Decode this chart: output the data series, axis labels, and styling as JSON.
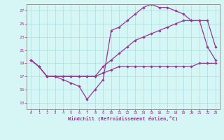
{
  "xlabel": "Windchill (Refroidissement éolien,°C)",
  "bg_color": "#d6f5f5",
  "grid_color": "#aadddd",
  "line_color": "#993399",
  "spine_color": "#888888",
  "xlim": [
    -0.5,
    23.5
  ],
  "ylim": [
    12,
    28
  ],
  "xticks": [
    0,
    1,
    2,
    3,
    4,
    5,
    6,
    7,
    8,
    9,
    10,
    11,
    12,
    13,
    14,
    15,
    16,
    17,
    18,
    19,
    20,
    21,
    22,
    23
  ],
  "yticks": [
    13,
    15,
    17,
    19,
    21,
    23,
    25,
    27
  ],
  "line1_x": [
    0,
    1,
    2,
    3,
    4,
    5,
    6,
    7,
    8,
    9,
    10,
    11,
    12,
    13,
    14,
    15,
    16,
    17,
    18,
    19,
    20,
    21,
    22,
    23
  ],
  "line1_y": [
    19.5,
    18.5,
    17.0,
    17.0,
    17.0,
    17.0,
    17.0,
    17.0,
    17.0,
    17.5,
    18.0,
    18.5,
    18.5,
    18.5,
    18.5,
    18.5,
    18.5,
    18.5,
    18.5,
    18.5,
    18.5,
    19.0,
    19.0,
    19.0
  ],
  "line2_x": [
    0,
    1,
    2,
    3,
    4,
    5,
    6,
    7,
    8,
    9,
    10,
    11,
    12,
    13,
    14,
    15,
    16,
    17,
    18,
    19,
    20,
    21,
    22,
    23
  ],
  "line2_y": [
    19.5,
    18.5,
    17.0,
    17.0,
    17.0,
    17.0,
    17.0,
    17.0,
    17.0,
    18.5,
    19.5,
    20.5,
    21.5,
    22.5,
    23.0,
    23.5,
    24.0,
    24.5,
    25.0,
    25.5,
    25.5,
    25.5,
    25.5,
    21.5
  ],
  "line3_x": [
    0,
    1,
    2,
    3,
    4,
    5,
    6,
    7,
    8,
    9,
    10,
    11,
    12,
    13,
    14,
    15,
    16,
    17,
    18,
    19,
    20,
    21,
    22,
    23
  ],
  "line3_y": [
    19.5,
    18.5,
    17.0,
    17.0,
    16.5,
    16.0,
    15.5,
    13.5,
    15.0,
    16.5,
    24.0,
    24.5,
    25.5,
    26.5,
    27.5,
    28.0,
    27.5,
    27.5,
    27.0,
    26.5,
    25.5,
    25.5,
    21.5,
    19.5
  ]
}
